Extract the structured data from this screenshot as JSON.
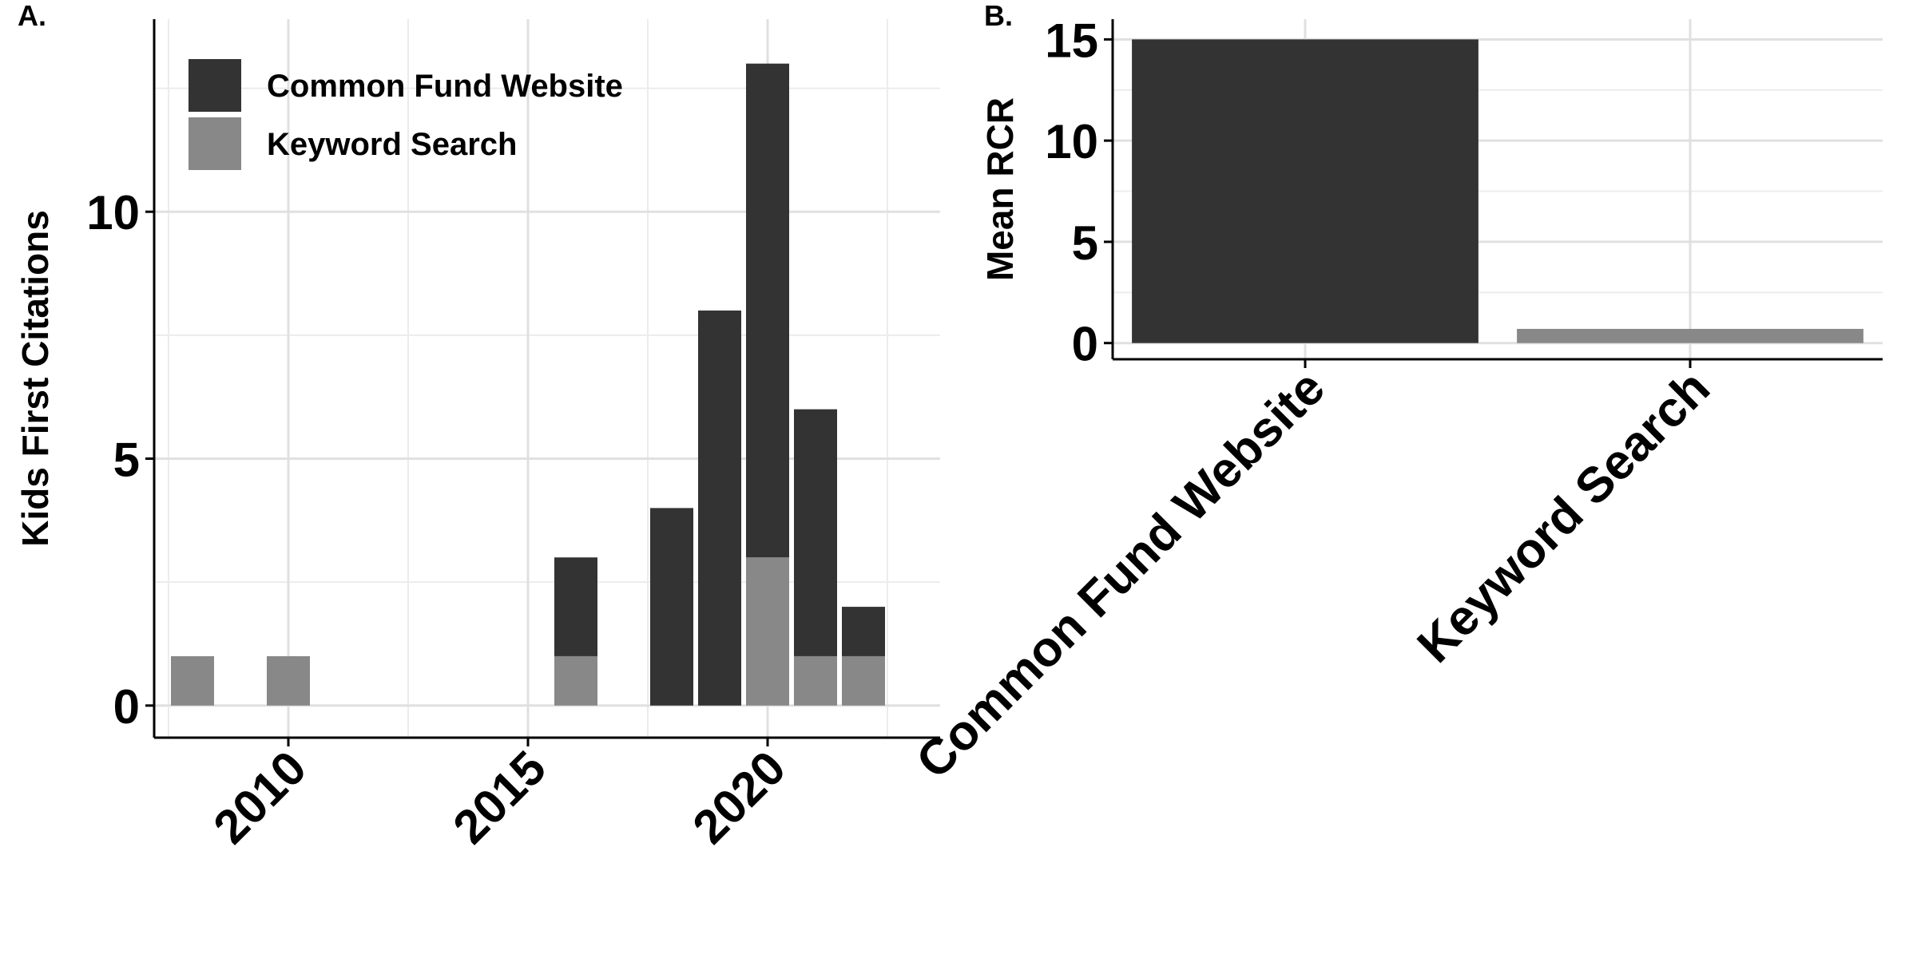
{
  "panel_a": {
    "label": "A."
  },
  "panel_b": {
    "label": "B."
  },
  "chart_data": [
    {
      "panel": "A.",
      "type": "bar",
      "stacked": true,
      "xlabel": "",
      "ylabel": "Kids First Citations",
      "xlim": [
        2007.2,
        2023.6
      ],
      "ylim": [
        -0.65,
        13.9
      ],
      "x_ticks": [
        2010,
        2015,
        2020
      ],
      "y_ticks": [
        0,
        5,
        10
      ],
      "grid": true,
      "legend": {
        "position": "top-left",
        "entries": [
          "Common Fund Website",
          "Keyword Search"
        ]
      },
      "x": [
        2008,
        2010,
        2016,
        2018,
        2019,
        2020,
        2021,
        2022
      ],
      "series": [
        {
          "name": "Keyword Search",
          "color": "#888888",
          "values": [
            1,
            1,
            1,
            0,
            0,
            3,
            1,
            1
          ]
        },
        {
          "name": "Common Fund Website",
          "color": "#333333",
          "values": [
            0,
            0,
            2,
            4,
            8,
            10,
            5,
            1
          ]
        }
      ]
    },
    {
      "panel": "B.",
      "type": "bar",
      "xlabel": "",
      "ylabel": "Mean RCR",
      "ylim": [
        -0.8,
        16
      ],
      "y_ticks": [
        0,
        5,
        10,
        15
      ],
      "grid": true,
      "categories": [
        "Common Fund Website",
        "Keyword Search"
      ],
      "colors": [
        "#333333",
        "#888888"
      ],
      "values": [
        15.0,
        0.7
      ]
    }
  ]
}
